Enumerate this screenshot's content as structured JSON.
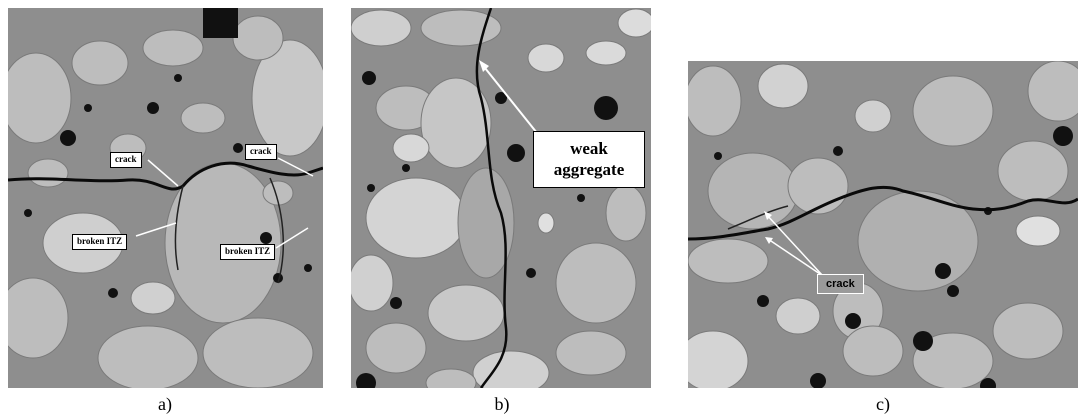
{
  "figure": {
    "panels": [
      {
        "id": "a",
        "caption": "a)",
        "labels": {
          "crack_left": "crack",
          "crack_right": "crack",
          "itz_left": "broken ITZ",
          "itz_right": "broken ITZ"
        }
      },
      {
        "id": "b",
        "caption": "b)",
        "labels": {
          "weak_aggregate": "weak\naggregate"
        }
      },
      {
        "id": "c",
        "caption": "c)",
        "labels": {
          "crack": "crack"
        }
      }
    ]
  },
  "colors": {
    "matrix": "#8e8e8e",
    "aggregate": "#c4c4c4",
    "void": "#111111",
    "crack": "#0a0a0a"
  }
}
